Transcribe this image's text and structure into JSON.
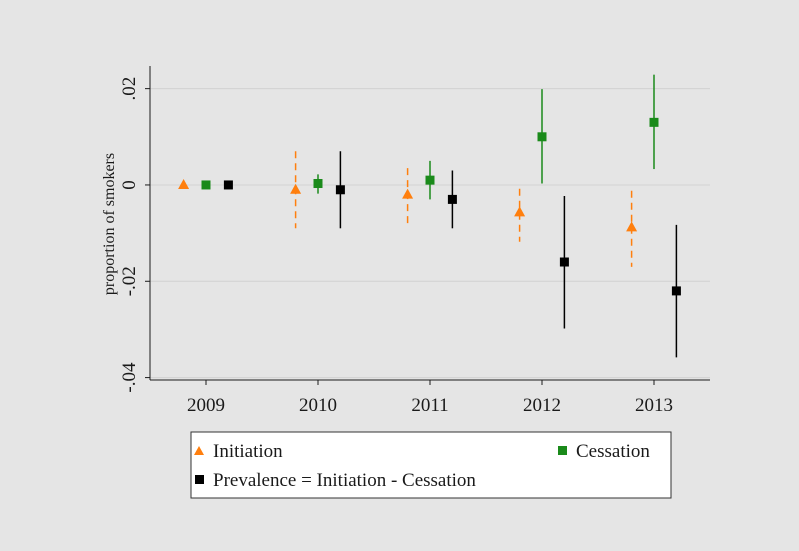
{
  "chart_data": {
    "type": "scatter",
    "title": "",
    "xlabel": "",
    "ylabel": "proportion of smokers",
    "xlim": [
      2008.5,
      2013.5
    ],
    "ylim": [
      -0.0405,
      0.0247
    ],
    "x_ticks": [
      2009,
      2010,
      2011,
      2012,
      2013
    ],
    "x_tick_labels": [
      "2009",
      "2010",
      "2011",
      "2012",
      "2013"
    ],
    "y_ticks": [
      -0.04,
      -0.02,
      0,
      0.02
    ],
    "y_tick_labels": [
      "-.04",
      "-.02",
      "0",
      ".02"
    ],
    "grid": true,
    "legend_position": "bottom",
    "series": [
      {
        "name": "Initiation",
        "marker": "triangle",
        "color": "#ff7f0e",
        "line_style": "dashed",
        "x_offset": -0.2,
        "points": [
          {
            "x": 2009,
            "y": 0.0
          },
          {
            "x": 2010,
            "y": -0.001,
            "ci": [
              -0.009,
              0.007
            ]
          },
          {
            "x": 2011,
            "y": -0.002,
            "ci": [
              -0.008,
              0.0035
            ]
          },
          {
            "x": 2012,
            "y": -0.0057,
            "ci": [
              -0.0118,
              -0.0008
            ]
          },
          {
            "x": 2013,
            "y": -0.0088,
            "ci": [
              -0.017,
              -0.0012
            ]
          }
        ]
      },
      {
        "name": "Cessation",
        "marker": "square",
        "color": "#1a8a1a",
        "line_style": "solid",
        "x_offset": 0.0,
        "points": [
          {
            "x": 2009,
            "y": 0.0
          },
          {
            "x": 2010,
            "y": 0.0003,
            "ci": [
              -0.0018,
              0.0022
            ]
          },
          {
            "x": 2011,
            "y": 0.001,
            "ci": [
              -0.003,
              0.005
            ]
          },
          {
            "x": 2012,
            "y": 0.01,
            "ci": [
              0.0003,
              0.0199
            ]
          },
          {
            "x": 2013,
            "y": 0.013,
            "ci": [
              0.0033,
              0.0229
            ]
          }
        ]
      },
      {
        "name": "Prevalence = Initiation - Cessation",
        "marker": "square",
        "color": "#000000",
        "line_style": "solid",
        "x_offset": 0.2,
        "points": [
          {
            "x": 2009,
            "y": 0.0
          },
          {
            "x": 2010,
            "y": -0.001,
            "ci": [
              -0.009,
              0.007
            ]
          },
          {
            "x": 2011,
            "y": -0.003,
            "ci": [
              -0.009,
              0.003
            ]
          },
          {
            "x": 2012,
            "y": -0.016,
            "ci": [
              -0.0298,
              -0.0023
            ]
          },
          {
            "x": 2013,
            "y": -0.022,
            "ci": [
              -0.0358,
              -0.0083
            ]
          }
        ]
      }
    ]
  },
  "legend": {
    "items": [
      {
        "label": "Initiation",
        "icon": "triangle-marker",
        "color": "#ff7f0e"
      },
      {
        "label": "Cessation",
        "icon": "square-marker",
        "color": "#1a8a1a"
      },
      {
        "label": "Prevalence = Initiation - Cessation",
        "icon": "square-marker",
        "color": "#000000"
      }
    ]
  }
}
